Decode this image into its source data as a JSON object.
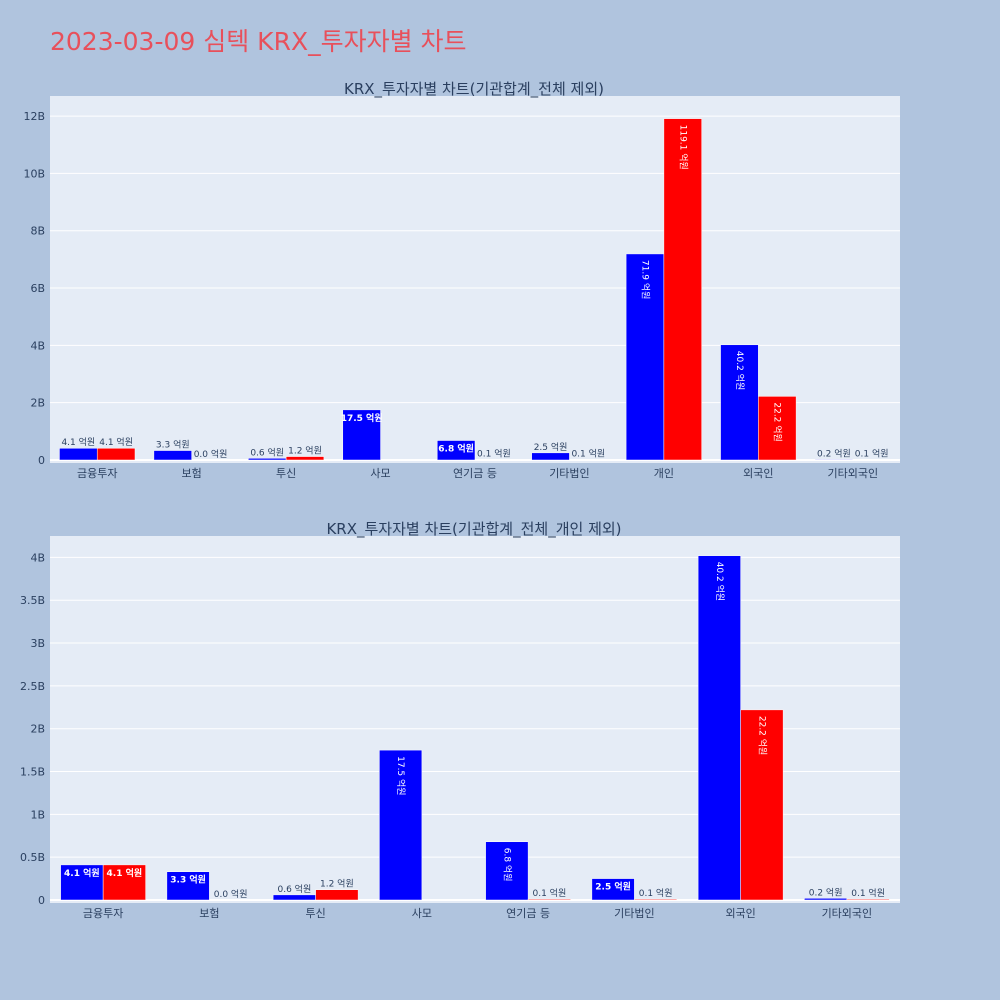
{
  "page": {
    "title": "2023-03-09 심텍 KRX_투자자별 차트"
  },
  "colors": {
    "background": "#b0c4de",
    "plot_bg": "#e5ecf6",
    "title": "#e8505b",
    "buy": "#0000ff",
    "sell": "#ff0000",
    "text": "#2a3f5f"
  },
  "chart_data": [
    {
      "type": "bar",
      "title": "KRX_투자자별 차트(기관합계_전체 제외)",
      "categories": [
        "금융투자",
        "보험",
        "투신",
        "사모",
        "연기금 등",
        "기타법인",
        "개인",
        "외국인",
        "기타외국인"
      ],
      "ylim": [
        0,
        12700000000.0
      ],
      "yticks": [
        0,
        2000000000.0,
        4000000000.0,
        6000000000.0,
        8000000000.0,
        10000000000.0,
        12000000000.0
      ],
      "ytick_labels": [
        "0",
        "2B",
        "4B",
        "6B",
        "8B",
        "10B",
        "12B"
      ],
      "grid": true,
      "series": [
        {
          "color": "#0000ff",
          "values": [
            410000000.0,
            330000000.0,
            60000000.0,
            1750000000.0,
            680000000.0,
            250000000.0,
            7190000000.0,
            4020000000.0,
            20000000.0
          ],
          "labels": [
            "4.1 억원",
            "3.3 억원",
            "0.6 억원",
            "17.5 억원",
            "6.8 억원",
            "2.5 억원",
            "71.9 억원",
            "40.2 억원",
            "0.2 억원"
          ]
        },
        {
          "color": "#ff0000",
          "values": [
            410000000.0,
            0.0,
            120000000.0,
            0,
            10000000.0,
            10000000.0,
            11910000000.0,
            2220000000.0,
            10000000.0
          ],
          "labels": [
            "4.1 억원",
            "0.0 억원",
            "1.2 억원",
            "",
            "0.1 억원",
            "0.1 억원",
            "119.1 억원",
            "22.2 억원",
            "0.1 억원"
          ]
        }
      ]
    },
    {
      "type": "bar",
      "title": "KRX_투자자별 차트(기관합계_전체_개인 제외)",
      "categories": [
        "금융투자",
        "보험",
        "투신",
        "사모",
        "연기금 등",
        "기타법인",
        "외국인",
        "기타외국인"
      ],
      "ylim": [
        0,
        4250000000.0
      ],
      "yticks": [
        0,
        500000000.0,
        1000000000.0,
        1500000000.0,
        2000000000.0,
        2500000000.0,
        3000000000.0,
        3500000000.0,
        4000000000.0
      ],
      "ytick_labels": [
        "0",
        "0.5B",
        "1B",
        "1.5B",
        "2B",
        "2.5B",
        "3B",
        "3.5B",
        "4B"
      ],
      "grid": true,
      "series": [
        {
          "color": "#0000ff",
          "values": [
            410000000.0,
            330000000.0,
            60000000.0,
            1750000000.0,
            680000000.0,
            250000000.0,
            4020000000.0,
            20000000.0
          ],
          "labels": [
            "4.1 억원",
            "3.3 억원",
            "0.6 억원",
            "17.5 억원",
            "6.8 억원",
            "2.5 억원",
            "40.2 억원",
            "0.2 억원"
          ]
        },
        {
          "color": "#ff0000",
          "values": [
            410000000.0,
            0.0,
            120000000.0,
            0,
            10000000.0,
            10000000.0,
            2220000000.0,
            10000000.0
          ],
          "labels": [
            "4.1 억원",
            "0.0 억원",
            "1.2 억원",
            "",
            "0.1 억원",
            "0.1 억원",
            "22.2 억원",
            "0.1 억원"
          ]
        }
      ]
    }
  ]
}
